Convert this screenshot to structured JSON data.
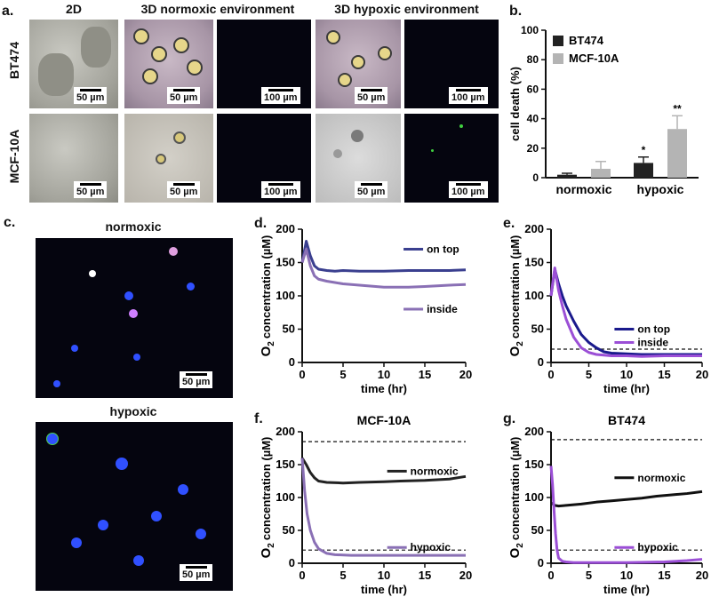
{
  "panel_letters": {
    "a": "a.",
    "b": "b.",
    "c": "c.",
    "d": "d.",
    "e": "e.",
    "f": "f.",
    "g": "g."
  },
  "panel_a": {
    "col_headers": [
      "2D",
      "3D normoxic environment",
      "3D hypoxic environment"
    ],
    "row_labels": [
      "BT474",
      "MCF-10A"
    ],
    "scale_50": "50 µm",
    "scale_100": "100 µm"
  },
  "panel_c": {
    "label_top": "normoxic",
    "label_bottom": "hypoxic",
    "scale_50": "50 µm"
  },
  "chart_data": [
    {
      "id": "b",
      "type": "bar",
      "ylabel": "cell death (%)",
      "categories": [
        "normoxic",
        "hypoxic"
      ],
      "ylim": [
        0,
        100
      ],
      "yticks": [
        0,
        20,
        40,
        60,
        80,
        100
      ],
      "series": [
        {
          "name": "BT474",
          "color": "#222222",
          "values": [
            2,
            10
          ],
          "errors": [
            1,
            4
          ]
        },
        {
          "name": "MCF-10A",
          "color": "#b4b4b4",
          "values": [
            6,
            33
          ],
          "errors": [
            5,
            9
          ]
        }
      ],
      "annotations": [
        {
          "category": "hypoxic",
          "series": "BT474",
          "text": "*"
        },
        {
          "category": "hypoxic",
          "series": "MCF-10A",
          "text": "**"
        }
      ],
      "legend_position": "top-left"
    },
    {
      "id": "d",
      "type": "line",
      "xlabel": "time (hr)",
      "ylabel": "concentration (µM)",
      "ylabel_prefix": "O",
      "ylabel_sub": "2",
      "xlim": [
        0,
        20
      ],
      "ylim": [
        0,
        200
      ],
      "xticks": [
        0,
        5,
        10,
        15,
        20
      ],
      "yticks": [
        0,
        50,
        100,
        150,
        200
      ],
      "series": [
        {
          "name": "on top",
          "color": "#3a3f8f",
          "x": [
            0,
            0.5,
            1,
            1.5,
            2,
            3,
            4,
            5,
            7,
            10,
            13,
            15,
            18,
            20
          ],
          "y": [
            150,
            182,
            160,
            145,
            140,
            138,
            137,
            138,
            137,
            137,
            138,
            138,
            138,
            139
          ]
        },
        {
          "name": "inside",
          "color": "#8a70b5",
          "x": [
            0,
            0.5,
            1,
            1.5,
            2,
            3,
            4,
            5,
            7,
            10,
            13,
            15,
            18,
            20
          ],
          "y": [
            150,
            170,
            145,
            130,
            125,
            122,
            120,
            118,
            116,
            113,
            113,
            114,
            116,
            117
          ]
        }
      ],
      "legend_position": "right"
    },
    {
      "id": "e",
      "type": "line",
      "xlabel": "time (hr)",
      "ylabel": "concentration (µM)",
      "ylabel_prefix": "O",
      "ylabel_sub": "2",
      "xlim": [
        0,
        20
      ],
      "ylim": [
        0,
        200
      ],
      "xticks": [
        0,
        5,
        10,
        15,
        20
      ],
      "yticks": [
        0,
        50,
        100,
        150,
        200
      ],
      "reference_line": 20,
      "series": [
        {
          "name": "on top",
          "color": "#1a1a8c",
          "x": [
            0,
            0.5,
            1,
            1.5,
            2,
            3,
            4,
            5,
            6,
            7,
            8,
            10,
            12,
            15,
            18,
            20
          ],
          "y": [
            100,
            140,
            118,
            100,
            85,
            62,
            42,
            30,
            22,
            16,
            14,
            13,
            12,
            12,
            12,
            12
          ]
        },
        {
          "name": "inside",
          "color": "#9b4fd6",
          "x": [
            0,
            0.5,
            1,
            1.5,
            2,
            3,
            4,
            5,
            6,
            7,
            8,
            10,
            12,
            15,
            18,
            20
          ],
          "y": [
            100,
            142,
            108,
            85,
            65,
            38,
            22,
            15,
            12,
            11,
            10,
            10,
            9,
            10,
            10,
            10
          ]
        }
      ],
      "legend_position": "bottom-right"
    },
    {
      "id": "f",
      "type": "line",
      "title": "MCF-10A",
      "xlabel": "time (hr)",
      "ylabel": "concentration (µM)",
      "ylabel_prefix": "O",
      "ylabel_sub": "2",
      "xlim": [
        0,
        20
      ],
      "ylim": [
        0,
        200
      ],
      "xticks": [
        0,
        5,
        10,
        15,
        20
      ],
      "yticks": [
        0,
        50,
        100,
        150,
        200
      ],
      "reference_lines": [
        185,
        20
      ],
      "series": [
        {
          "name": "normoxic",
          "color": "#222222",
          "x": [
            0,
            0.5,
            1,
            1.5,
            2,
            3,
            5,
            7,
            10,
            12,
            15,
            18,
            20
          ],
          "y": [
            160,
            150,
            138,
            130,
            125,
            123,
            122,
            123,
            124,
            125,
            126,
            128,
            132
          ]
        },
        {
          "name": "hypoxic",
          "color": "#8a70b5",
          "x": [
            0,
            0.3,
            0.6,
            1,
            1.5,
            2,
            3,
            4,
            6,
            10,
            15,
            20
          ],
          "y": [
            160,
            110,
            75,
            50,
            32,
            22,
            15,
            13,
            12,
            12,
            12,
            12
          ]
        }
      ],
      "legend_position": "right"
    },
    {
      "id": "g",
      "type": "line",
      "title": "BT474",
      "xlabel": "time (hr)",
      "ylabel": "concentration (µM)",
      "ylabel_prefix": "O",
      "ylabel_sub": "2",
      "xlim": [
        0,
        20
      ],
      "ylim": [
        0,
        200
      ],
      "xticks": [
        0,
        5,
        10,
        15,
        20
      ],
      "yticks": [
        0,
        50,
        100,
        150,
        200
      ],
      "reference_lines": [
        188,
        20
      ],
      "series": [
        {
          "name": "normoxic",
          "color": "#111111",
          "x": [
            0,
            0.5,
            1,
            2,
            4,
            6,
            8,
            10,
            12,
            14,
            16,
            18,
            20
          ],
          "y": [
            92,
            88,
            87,
            88,
            90,
            93,
            95,
            97,
            99,
            102,
            104,
            106,
            109
          ]
        },
        {
          "name": "hypoxic",
          "color": "#9b4fd6",
          "x": [
            0,
            0.2,
            0.4,
            0.6,
            0.8,
            1,
            1.5,
            2,
            3,
            5,
            10,
            15,
            18,
            20
          ],
          "y": [
            148,
            120,
            80,
            45,
            20,
            8,
            3,
            2,
            1,
            1,
            1,
            2,
            4,
            6
          ]
        }
      ],
      "legend_position": "right"
    }
  ]
}
